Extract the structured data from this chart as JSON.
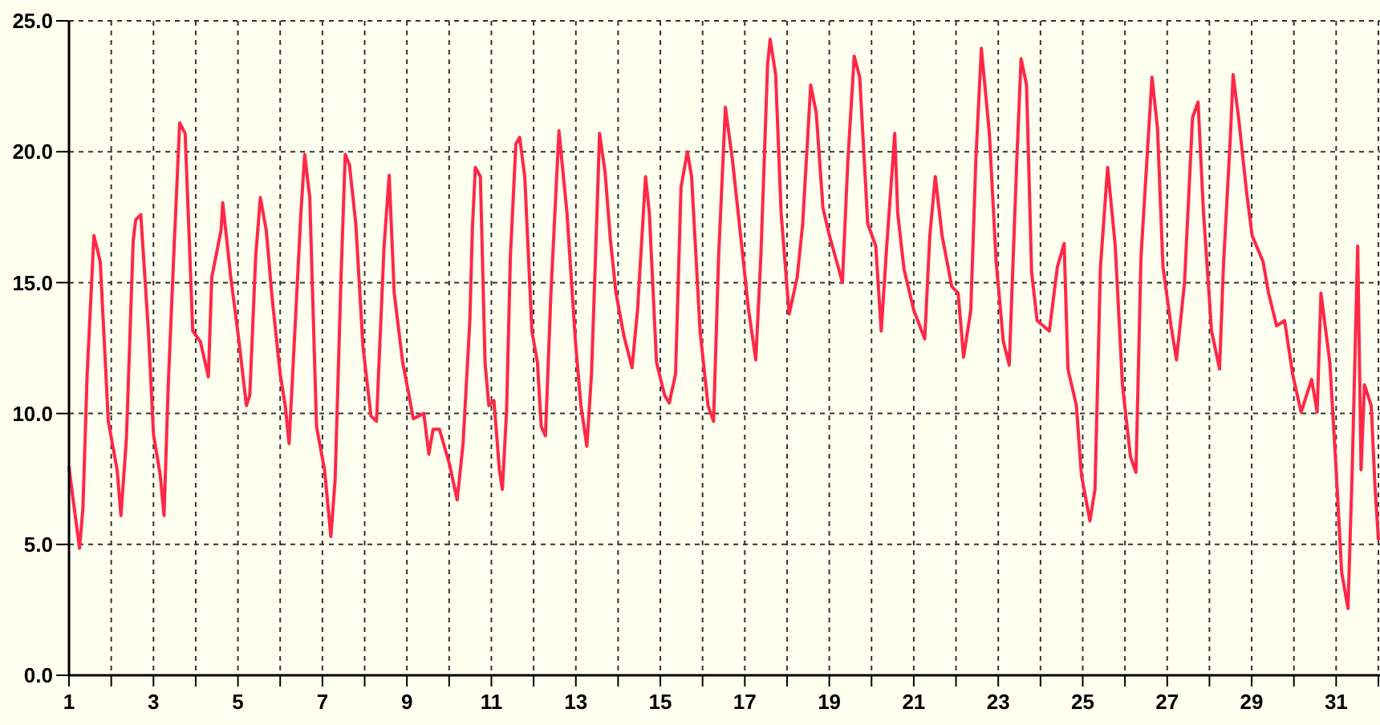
{
  "chart_data": {
    "type": "line",
    "x": [
      1.0,
      1.09,
      1.25,
      1.33,
      1.43,
      1.59,
      1.74,
      1.93,
      2.14,
      2.23,
      2.36,
      2.52,
      2.58,
      2.7,
      2.88,
      3.0,
      3.16,
      3.25,
      3.35,
      3.49,
      3.62,
      3.75,
      3.93,
      4.11,
      4.3,
      4.38,
      4.6,
      4.64,
      4.83,
      5.01,
      5.2,
      5.28,
      5.42,
      5.53,
      5.67,
      5.81,
      6.0,
      6.12,
      6.21,
      6.4,
      6.49,
      6.58,
      6.7,
      6.86,
      7.05,
      7.2,
      7.3,
      7.44,
      7.54,
      7.64,
      7.79,
      7.96,
      8.15,
      8.28,
      8.46,
      8.58,
      8.7,
      8.9,
      9.05,
      9.15,
      9.4,
      9.52,
      9.62,
      9.77,
      10.01,
      10.19,
      10.33,
      10.49,
      10.55,
      10.62,
      10.74,
      10.85,
      10.94,
      11.06,
      11.19,
      11.26,
      11.36,
      11.45,
      11.58,
      11.67,
      11.79,
      11.96,
      12.09,
      12.18,
      12.28,
      12.41,
      12.6,
      12.79,
      12.99,
      13.12,
      13.26,
      13.37,
      13.5,
      13.56,
      13.69,
      13.82,
      13.95,
      14.14,
      14.33,
      14.46,
      14.65,
      14.74,
      14.91,
      15.1,
      15.21,
      15.36,
      15.49,
      15.64,
      15.74,
      15.94,
      16.13,
      16.26,
      16.38,
      16.54,
      16.71,
      16.9,
      17.09,
      17.26,
      17.38,
      17.54,
      17.6,
      17.73,
      17.86,
      17.99,
      18.05,
      18.24,
      18.37,
      18.56,
      18.69,
      18.85,
      19.01,
      19.21,
      19.31,
      19.44,
      19.59,
      19.72,
      19.91,
      20.1,
      20.23,
      20.36,
      20.55,
      20.62,
      20.77,
      21.0,
      21.26,
      21.38,
      21.51,
      21.67,
      21.9,
      22.05,
      22.18,
      22.35,
      22.47,
      22.6,
      22.79,
      22.95,
      23.12,
      23.26,
      23.44,
      23.54,
      23.67,
      23.79,
      23.92,
      24.21,
      24.4,
      24.56,
      24.65,
      24.85,
      24.97,
      25.17,
      25.29,
      25.42,
      25.59,
      25.77,
      25.94,
      26.13,
      26.26,
      26.38,
      26.64,
      26.77,
      26.9,
      27.09,
      27.22,
      27.41,
      27.6,
      27.73,
      27.86,
      28.05,
      28.24,
      28.33,
      28.5,
      28.56,
      28.69,
      28.88,
      29.01,
      29.27,
      29.4,
      29.59,
      29.78,
      29.97,
      30.17,
      30.42,
      30.55,
      30.64,
      30.85,
      31.0,
      31.13,
      31.28,
      31.38,
      31.51,
      31.59,
      31.67,
      31.83,
      31.92,
      32.0
    ],
    "series": [
      {
        "color": "#ff2846",
        "values": [
          7.95,
          6.8,
          4.85,
          6.4,
          11.5,
          16.8,
          15.8,
          9.7,
          7.85,
          6.1,
          9.05,
          16.6,
          17.4,
          17.6,
          13.15,
          9.2,
          7.65,
          6.1,
          11.1,
          16.4,
          21.1,
          20.7,
          13.15,
          12.75,
          11.4,
          15.2,
          17.0,
          18.05,
          15.2,
          12.95,
          10.3,
          10.7,
          16.0,
          18.25,
          17.0,
          14.4,
          11.5,
          10.3,
          8.85,
          14.8,
          17.65,
          19.9,
          18.25,
          9.5,
          7.85,
          5.3,
          7.45,
          15.2,
          19.9,
          19.5,
          17.25,
          12.55,
          9.9,
          9.7,
          16.4,
          19.1,
          14.6,
          11.95,
          10.7,
          9.8,
          10.0,
          8.45,
          9.4,
          9.4,
          8.05,
          6.7,
          8.85,
          13.55,
          17.05,
          19.4,
          19.05,
          11.95,
          10.3,
          10.5,
          7.85,
          7.1,
          10.1,
          16.0,
          20.3,
          20.55,
          19.05,
          13.15,
          11.95,
          9.5,
          9.15,
          14.6,
          20.8,
          17.65,
          12.75,
          10.3,
          8.75,
          11.5,
          17.65,
          20.7,
          19.25,
          16.6,
          14.6,
          12.95,
          11.75,
          13.95,
          19.05,
          17.65,
          11.95,
          10.7,
          10.4,
          11.5,
          18.65,
          20.0,
          19.05,
          13.15,
          10.3,
          9.7,
          16.0,
          21.7,
          19.65,
          16.8,
          13.95,
          12.05,
          16.0,
          23.35,
          24.3,
          22.95,
          17.65,
          15.0,
          13.8,
          15.2,
          17.25,
          22.55,
          21.5,
          17.85,
          16.75,
          15.6,
          15.0,
          19.65,
          23.65,
          22.85,
          17.25,
          16.4,
          13.15,
          16.4,
          20.7,
          17.65,
          15.5,
          13.95,
          12.85,
          16.8,
          19.05,
          16.8,
          14.85,
          14.6,
          12.15,
          13.95,
          19.7,
          23.95,
          20.7,
          15.8,
          12.75,
          11.85,
          19.7,
          23.55,
          22.55,
          15.4,
          13.55,
          13.15,
          15.6,
          16.5,
          11.7,
          10.3,
          7.65,
          5.9,
          7.1,
          15.6,
          19.4,
          16.4,
          11.1,
          8.35,
          7.75,
          16.0,
          22.85,
          20.9,
          15.6,
          13.35,
          12.05,
          15.0,
          21.3,
          21.9,
          17.65,
          13.15,
          11.7,
          15.6,
          20.7,
          22.95,
          21.3,
          18.45,
          16.8,
          15.8,
          14.6,
          13.35,
          13.55,
          11.5,
          10.05,
          11.3,
          10.05,
          14.6,
          11.95,
          7.85,
          3.95,
          2.55,
          7.85,
          16.4,
          7.85,
          11.1,
          10.3,
          7.2,
          5.2
        ]
      }
    ],
    "xlim": [
      1,
      32
    ],
    "xticks": [
      1,
      {
        "value": 2,
        "label": null
      },
      3,
      {
        "value": 4,
        "label": null
      },
      5,
      {
        "value": 6,
        "label": null
      },
      7,
      {
        "value": 8,
        "label": null
      },
      9,
      {
        "value": 10,
        "label": null
      },
      11,
      {
        "value": 12,
        "label": null
      },
      13,
      {
        "value": 14,
        "label": null
      },
      15,
      {
        "value": 16,
        "label": null
      },
      17,
      {
        "value": 18,
        "label": null
      },
      19,
      {
        "value": 20,
        "label": null
      },
      21,
      {
        "value": 22,
        "label": null
      },
      23,
      {
        "value": 24,
        "label": null
      },
      25,
      {
        "value": 26,
        "label": null
      },
      27,
      {
        "value": 28,
        "label": null
      },
      29,
      {
        "value": 30,
        "label": null
      },
      31,
      {
        "value": 32,
        "label": null
      }
    ],
    "ylim": [
      0,
      25
    ],
    "yticks": [
      {
        "value": 0,
        "label": "0.0"
      },
      {
        "value": 5,
        "label": "5.0"
      },
      {
        "value": 10,
        "label": "10.0"
      },
      {
        "value": 15,
        "label": "15.0"
      },
      {
        "value": 20,
        "label": "20.0"
      },
      {
        "value": 25,
        "label": "25.0"
      }
    ],
    "grid": true,
    "marker": "none",
    "line_style": "solid"
  }
}
